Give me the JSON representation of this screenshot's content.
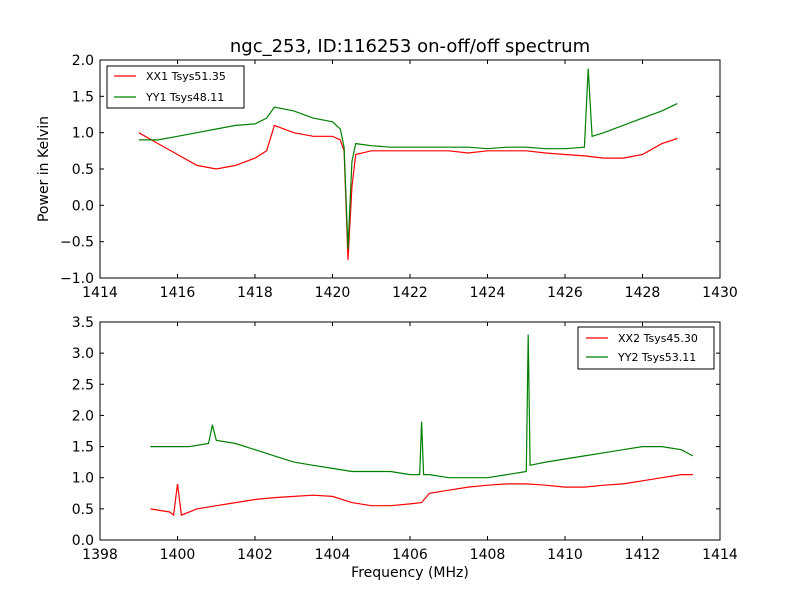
{
  "chart_data": [
    {
      "type": "line",
      "title": "ngc_253, ID:116253 on-off/off spectrum",
      "xlabel": "",
      "ylabel": "Power in Kelvin",
      "xlim": [
        1414,
        1430
      ],
      "ylim": [
        -1.0,
        2.0
      ],
      "xticks": [
        "1414",
        "1416",
        "1418",
        "1420",
        "1422",
        "1424",
        "1426",
        "1428",
        "1430"
      ],
      "yticks": [
        "−1.0",
        "−0.5",
        "0.0",
        "0.5",
        "1.0",
        "1.5",
        "2.0"
      ],
      "grid": false,
      "legend_position": "upper-left",
      "series": [
        {
          "name": "XX1 Tsys51.35",
          "color": "#ff0000",
          "x": [
            1415.0,
            1415.5,
            1416.0,
            1416.5,
            1417.0,
            1417.5,
            1418.0,
            1418.3,
            1418.5,
            1419.0,
            1419.5,
            1420.0,
            1420.2,
            1420.3,
            1420.4,
            1420.5,
            1420.6,
            1421.0,
            1421.5,
            1422.0,
            1422.5,
            1423.0,
            1423.5,
            1424.0,
            1424.5,
            1425.0,
            1425.5,
            1426.0,
            1426.5,
            1427.0,
            1427.5,
            1428.0,
            1428.5,
            1428.9
          ],
          "y": [
            1.0,
            0.85,
            0.7,
            0.55,
            0.5,
            0.55,
            0.65,
            0.75,
            1.1,
            1.0,
            0.95,
            0.95,
            0.9,
            0.75,
            -0.75,
            0.25,
            0.7,
            0.75,
            0.75,
            0.75,
            0.75,
            0.75,
            0.72,
            0.75,
            0.75,
            0.75,
            0.72,
            0.7,
            0.68,
            0.65,
            0.65,
            0.7,
            0.85,
            0.92
          ]
        },
        {
          "name": "YY1 Tsys48.11",
          "color": "#008000",
          "x": [
            1415.0,
            1415.5,
            1416.0,
            1416.5,
            1417.0,
            1417.5,
            1418.0,
            1418.3,
            1418.5,
            1419.0,
            1419.5,
            1420.0,
            1420.2,
            1420.3,
            1420.4,
            1420.5,
            1420.6,
            1421.0,
            1421.5,
            1422.0,
            1422.5,
            1423.0,
            1423.5,
            1424.0,
            1424.5,
            1425.0,
            1425.5,
            1426.0,
            1426.5,
            1426.6,
            1426.7,
            1427.0,
            1427.5,
            1428.0,
            1428.5,
            1428.9
          ],
          "y": [
            0.9,
            0.9,
            0.95,
            1.0,
            1.05,
            1.1,
            1.12,
            1.2,
            1.35,
            1.3,
            1.2,
            1.15,
            1.05,
            0.8,
            -0.6,
            0.6,
            0.85,
            0.82,
            0.8,
            0.8,
            0.8,
            0.8,
            0.8,
            0.78,
            0.8,
            0.8,
            0.78,
            0.78,
            0.8,
            1.88,
            0.95,
            1.0,
            1.1,
            1.2,
            1.3,
            1.4
          ]
        }
      ]
    },
    {
      "type": "line",
      "title": "",
      "xlabel": "Frequency (MHz)",
      "ylabel": "",
      "xlim": [
        1398,
        1414
      ],
      "ylim": [
        0.0,
        3.5
      ],
      "xticks": [
        "1398",
        "1400",
        "1402",
        "1404",
        "1406",
        "1408",
        "1410",
        "1412",
        "1414"
      ],
      "yticks": [
        "0.0",
        "0.5",
        "1.0",
        "1.5",
        "2.0",
        "2.5",
        "3.0",
        "3.5"
      ],
      "grid": false,
      "legend_position": "upper-right",
      "series": [
        {
          "name": "XX2 Tsys45.30",
          "color": "#ff0000",
          "x": [
            1399.3,
            1399.8,
            1399.9,
            1400.0,
            1400.1,
            1400.5,
            1401.0,
            1401.5,
            1402.0,
            1402.5,
            1403.0,
            1403.5,
            1404.0,
            1404.5,
            1405.0,
            1405.5,
            1406.0,
            1406.3,
            1406.5,
            1407.0,
            1407.5,
            1408.0,
            1408.5,
            1409.0,
            1409.5,
            1410.0,
            1410.5,
            1411.0,
            1411.5,
            1412.0,
            1412.5,
            1413.0,
            1413.3
          ],
          "y": [
            0.5,
            0.45,
            0.4,
            0.9,
            0.4,
            0.5,
            0.55,
            0.6,
            0.65,
            0.68,
            0.7,
            0.72,
            0.7,
            0.6,
            0.55,
            0.55,
            0.58,
            0.6,
            0.75,
            0.8,
            0.85,
            0.88,
            0.9,
            0.9,
            0.88,
            0.85,
            0.85,
            0.88,
            0.9,
            0.95,
            1.0,
            1.05,
            1.05
          ]
        },
        {
          "name": "YY2 Tsys53.11",
          "color": "#008000",
          "x": [
            1399.3,
            1399.8,
            1400.3,
            1400.8,
            1400.9,
            1401.0,
            1401.5,
            1402.0,
            1402.5,
            1403.0,
            1403.5,
            1404.0,
            1404.5,
            1405.0,
            1405.5,
            1406.0,
            1406.25,
            1406.3,
            1406.35,
            1406.5,
            1407.0,
            1407.5,
            1408.0,
            1408.5,
            1409.0,
            1409.05,
            1409.1,
            1409.5,
            1410.0,
            1410.5,
            1411.0,
            1411.5,
            1412.0,
            1412.5,
            1413.0,
            1413.3
          ],
          "y": [
            1.5,
            1.5,
            1.5,
            1.55,
            1.85,
            1.6,
            1.55,
            1.45,
            1.35,
            1.25,
            1.2,
            1.15,
            1.1,
            1.1,
            1.1,
            1.05,
            1.05,
            1.9,
            1.05,
            1.05,
            1.0,
            1.0,
            1.0,
            1.05,
            1.1,
            3.3,
            1.2,
            1.25,
            1.3,
            1.35,
            1.4,
            1.45,
            1.5,
            1.5,
            1.45,
            1.35
          ]
        }
      ]
    }
  ]
}
